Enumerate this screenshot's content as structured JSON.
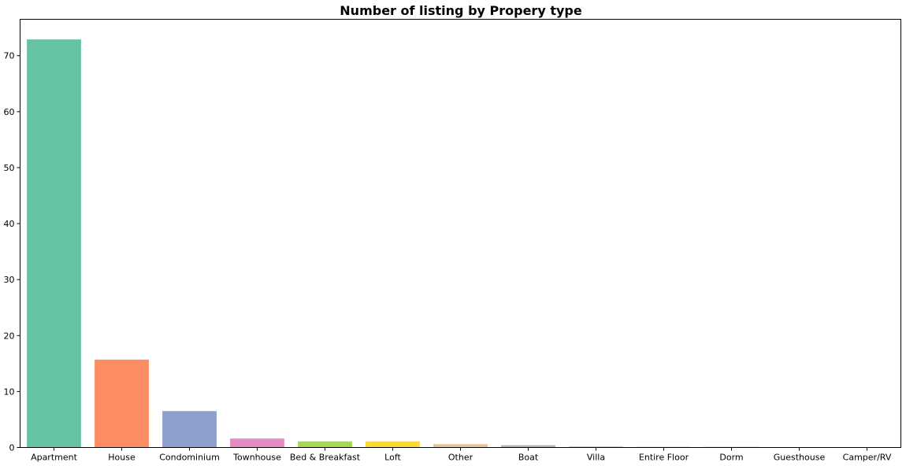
{
  "chart_data": {
    "type": "bar",
    "title": "Number of listing by Propery type",
    "xlabel": "",
    "ylabel": "",
    "categories": [
      "Apartment",
      "House",
      "Condominium",
      "Townhouse",
      "Bed & Breakfast",
      "Loft",
      "Other",
      "Boat",
      "Villa",
      "Entire Floor",
      "Dorm",
      "Guesthouse",
      "Camper/RV"
    ],
    "values": [
      72.9,
      15.7,
      6.5,
      1.6,
      1.1,
      1.1,
      0.6,
      0.4,
      0.15,
      0.1,
      0.1,
      0.05,
      0.05
    ],
    "colors": [
      "#66c2a5",
      "#fc8d62",
      "#8da0cb",
      "#e78ac3",
      "#a6d854",
      "#ffd92f",
      "#e5c494",
      "#b3b3b3",
      "#66c2a5",
      "#fc8d62",
      "#8da0cb",
      "#e78ac3",
      "#a6d854"
    ],
    "ylim": [
      0,
      76.5
    ],
    "yticks": [
      0,
      10,
      20,
      30,
      40,
      50,
      60,
      70
    ],
    "grid": false,
    "legend": "none"
  }
}
